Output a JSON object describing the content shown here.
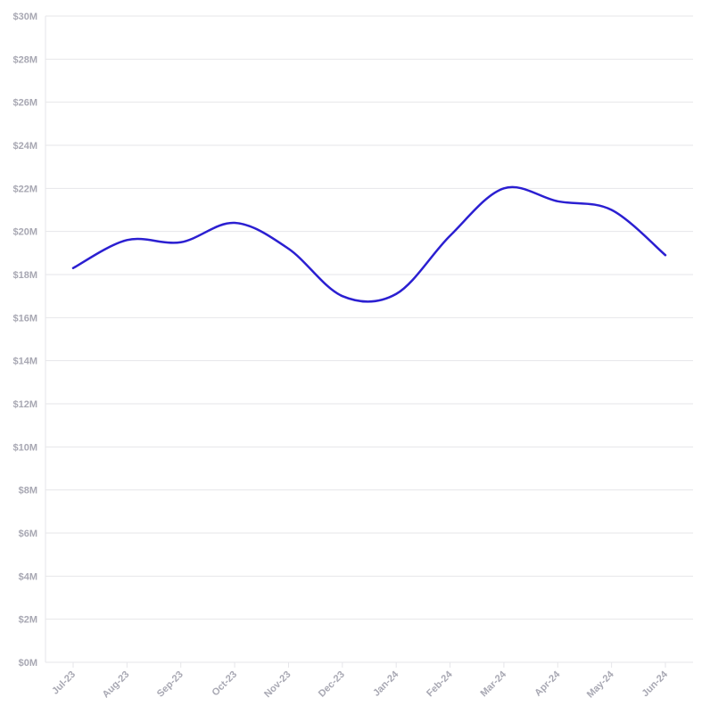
{
  "chart_data": {
    "type": "line",
    "title": "",
    "xlabel": "",
    "ylabel": "",
    "categories": [
      "Jul-23",
      "Aug-23",
      "Sep-23",
      "Oct-23",
      "Nov-23",
      "Dec-23",
      "Jan-24",
      "Feb-24",
      "Mar-24",
      "Apr-24",
      "May-24",
      "Jun-24"
    ],
    "series": [
      {
        "values": [
          18.3,
          19.6,
          19.5,
          20.4,
          19.2,
          17.0,
          17.1,
          19.8,
          22.0,
          21.4,
          21.0,
          18.9
        ],
        "color": "#2b1fd1"
      }
    ],
    "ylim": [
      0,
      30
    ],
    "y_ticks": [
      {
        "value": 0,
        "label": "$0M"
      },
      {
        "value": 2,
        "label": "$2M"
      },
      {
        "value": 4,
        "label": "$4M"
      },
      {
        "value": 6,
        "label": "$6M"
      },
      {
        "value": 8,
        "label": "$8M"
      },
      {
        "value": 10,
        "label": "$10M"
      },
      {
        "value": 12,
        "label": "$12M"
      },
      {
        "value": 14,
        "label": "$14M"
      },
      {
        "value": 16,
        "label": "$16M"
      },
      {
        "value": 18,
        "label": "$18M"
      },
      {
        "value": 20,
        "label": "$20M"
      },
      {
        "value": 22,
        "label": "$22M"
      },
      {
        "value": 24,
        "label": "$24M"
      },
      {
        "value": 26,
        "label": "$26M"
      },
      {
        "value": 28,
        "label": "$28M"
      },
      {
        "value": 30,
        "label": "$30M"
      }
    ],
    "grid": true,
    "legend": "none",
    "colors": {
      "line": "#2b1fd1",
      "grid": "#e6e6ea",
      "tick_text": "#a8a8b3"
    }
  }
}
